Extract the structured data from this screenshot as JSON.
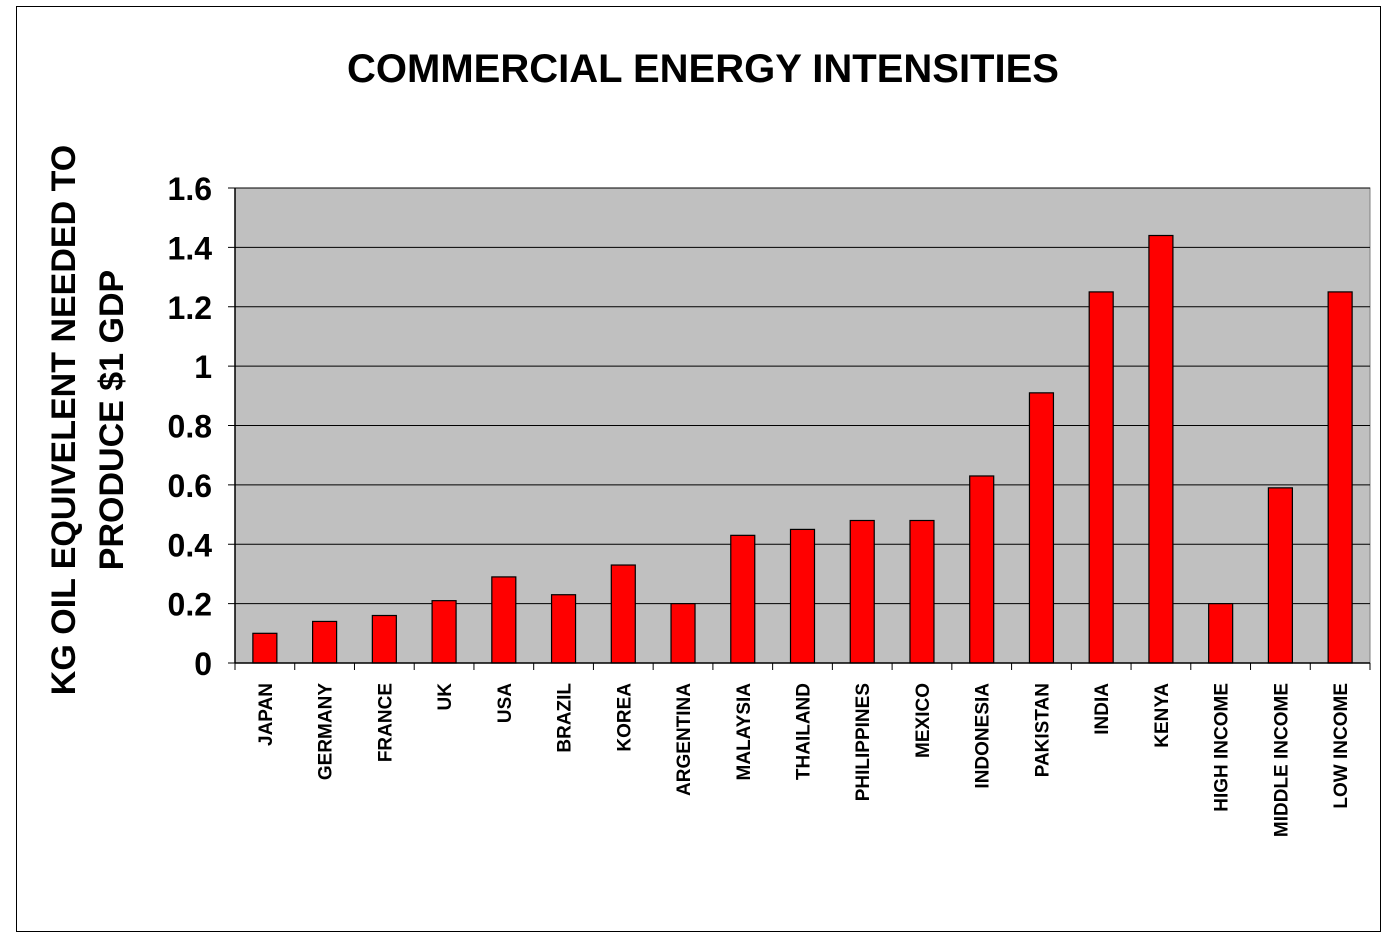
{
  "chart_data": {
    "type": "bar",
    "title": "COMMERCIAL ENERGY INTENSITIES",
    "ylabel_lines": [
      "KG OIL EQUIVELENT NEEDED TO",
      "PRODUCE $1 GDP"
    ],
    "xlabel": "",
    "categories": [
      "JAPAN",
      "GERMANY",
      "FRANCE",
      "UK",
      "USA",
      "BRAZIL",
      "KOREA",
      "ARGENTINA",
      "MALAYSIA",
      "THAILAND",
      "PHILIPPINES",
      "MEXICO",
      "INDONESIA",
      "PAKISTAN",
      "INDIA",
      "KENYA",
      "HIGH INCOME",
      "MIDDLE INCOME",
      "LOW INCOME"
    ],
    "values": [
      0.1,
      0.14,
      0.16,
      0.21,
      0.29,
      0.23,
      0.33,
      0.2,
      0.43,
      0.45,
      0.48,
      0.48,
      0.63,
      0.91,
      1.25,
      1.44,
      0.2,
      0.59,
      1.25
    ],
    "ylim": [
      0,
      1.6
    ],
    "yticks": [
      "0",
      "0.2",
      "0.4",
      "0.6",
      "0.8",
      "1",
      "1.2",
      "1.4",
      "1.6"
    ],
    "grid": true,
    "colors": {
      "bar": "#ff0000",
      "plot_background": "#c0c0c0",
      "grid": "#000000"
    }
  }
}
